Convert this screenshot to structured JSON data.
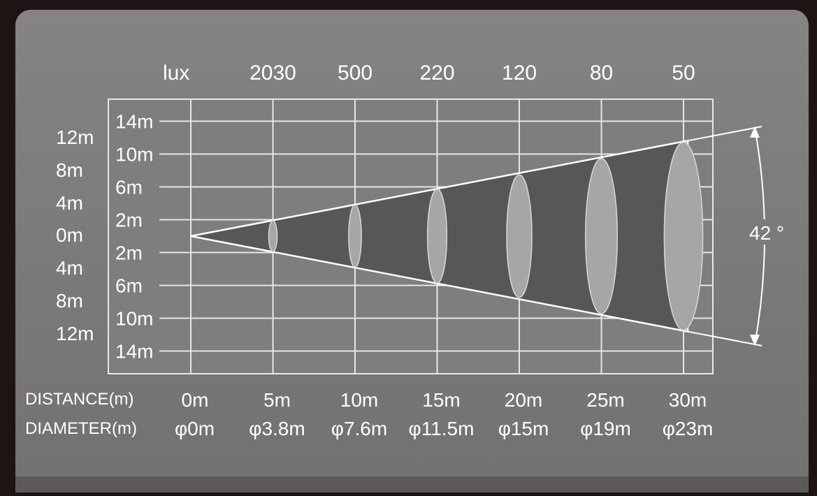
{
  "colors": {
    "outer_background": "#1e1414",
    "panel": "#7a7878",
    "panel_bottom": "#5a5858",
    "grid_fill": "#7e7c7c",
    "grid_line": "#ececec",
    "beam_cone": "#555454",
    "beam_spot": "#a6a4a4",
    "text": "#ffffff"
  },
  "lux_header": "lux",
  "left_axis_labels": [
    "12m",
    "8m",
    "4m",
    "0m",
    "4m",
    "8m",
    "12m"
  ],
  "inner_axis_labels": [
    "14m",
    "10m",
    "6m",
    "2m",
    "2m",
    "6m",
    "10m",
    "14m"
  ],
  "distance_label": "DISTANCE(m)",
  "diameter_label": "DIAMETER(m)",
  "beam_angle": "42 °",
  "chart_data": {
    "type": "table",
    "columns": [
      {
        "distance": "0m",
        "distance_m": 0,
        "diameter": "φ0m",
        "diameter_m": 0,
        "lux": ""
      },
      {
        "distance": "5m",
        "distance_m": 5,
        "diameter": "φ3.8m",
        "diameter_m": 3.8,
        "lux": "2030"
      },
      {
        "distance": "10m",
        "distance_m": 10,
        "diameter": "φ7.6m",
        "diameter_m": 7.6,
        "lux": "500"
      },
      {
        "distance": "15m",
        "distance_m": 15,
        "diameter": "φ11.5m",
        "diameter_m": 11.5,
        "lux": "220"
      },
      {
        "distance": "20m",
        "distance_m": 20,
        "diameter": "φ15m",
        "diameter_m": 15,
        "lux": "120"
      },
      {
        "distance": "25m",
        "distance_m": 25,
        "diameter": "φ19m",
        "diameter_m": 19,
        "lux": "80"
      },
      {
        "distance": "30m",
        "distance_m": 30,
        "diameter": "φ23m",
        "diameter_m": 23,
        "lux": "50"
      }
    ]
  }
}
